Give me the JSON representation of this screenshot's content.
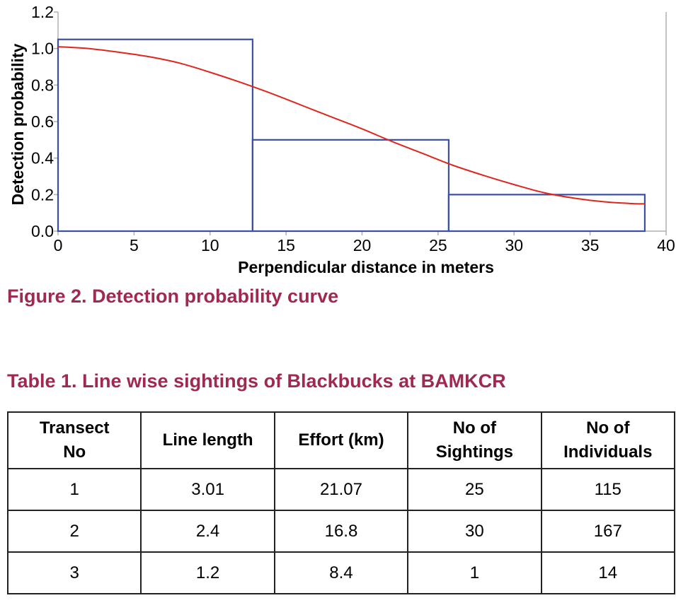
{
  "chart_data": {
    "type": "line",
    "title": "",
    "xlabel": "Perpendicular distance in meters",
    "ylabel": "Detection probability",
    "xlim": [
      0,
      40
    ],
    "ylim": [
      0,
      1.2
    ],
    "xticks": [
      0,
      5,
      10,
      15,
      20,
      25,
      30,
      35,
      40
    ],
    "yticks": [
      "0.0",
      "0.2",
      "0.4",
      "0.6",
      "0.8",
      "1.0",
      "1.2"
    ],
    "grid": false,
    "histogram": {
      "color": "#3a4fa8",
      "bins": [
        {
          "x0": 0,
          "x1": 12.8,
          "value": 1.05
        },
        {
          "x0": 12.8,
          "x1": 25.7,
          "value": 0.5
        },
        {
          "x0": 25.7,
          "x1": 38.6,
          "value": 0.2
        }
      ]
    },
    "curve": {
      "color": "#e0261c",
      "x": [
        0,
        2,
        4,
        6,
        8,
        10,
        12,
        14,
        16,
        18,
        20,
        22,
        24,
        26,
        28,
        30,
        32,
        34,
        36,
        38,
        38.6
      ],
      "y": [
        1.01,
        1.0,
        0.98,
        0.955,
        0.92,
        0.87,
        0.815,
        0.755,
        0.69,
        0.625,
        0.56,
        0.49,
        0.425,
        0.36,
        0.305,
        0.255,
        0.21,
        0.18,
        0.16,
        0.15,
        0.15
      ]
    }
  },
  "figure_caption": "Figure 2. Detection probability curve",
  "table_caption": "Table 1. Line wise sightings of Blackbucks at BAMKCR",
  "table": {
    "headers": [
      "Transect\nNo",
      "Line length",
      "Effort (km)",
      "No of\nSightings",
      "No of\nIndividuals"
    ],
    "rows": [
      [
        "1",
        "3.01",
        "21.07",
        "25",
        "115"
      ],
      [
        "2",
        "2.4",
        "16.8",
        "30",
        "167"
      ],
      [
        "3",
        "1.2",
        "8.4",
        "1",
        "14"
      ]
    ]
  },
  "colors": {
    "caption": "#a0294f",
    "axis": "#b0b0b0"
  }
}
